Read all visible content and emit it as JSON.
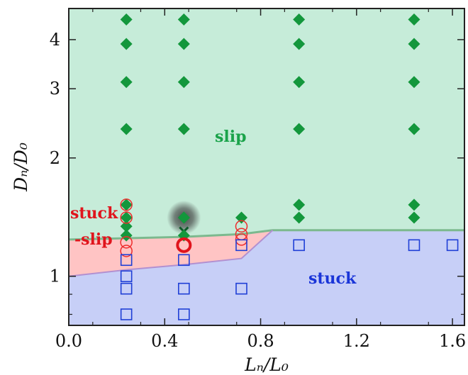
{
  "chart_data": {
    "type": "scatter",
    "xlabel": "Lₙ/L₀",
    "ylabel": "Dₙ/D₀",
    "xlim": [
      0.0,
      1.65
    ],
    "ylim": [
      0.75,
      4.8
    ],
    "y_scale": "log",
    "x_ticks": [
      0.0,
      0.4,
      0.8,
      1.2,
      1.6
    ],
    "x_tick_labels": [
      "0.0",
      "0.4",
      "0.8",
      "1.2",
      "1.6"
    ],
    "y_ticks": [
      1,
      2,
      3,
      4
    ],
    "y_tick_labels": [
      "1",
      "2",
      "3",
      "4"
    ],
    "grid": false,
    "regions": [
      {
        "name": "slip",
        "label": "slip",
        "color": "#c6ecd9",
        "edge_color": "#7cb98e",
        "label_color": "#1aa34a",
        "boundary": [
          [
            0.0,
            1.24
          ],
          [
            0.25,
            1.25
          ],
          [
            0.48,
            1.26
          ],
          [
            0.72,
            1.28
          ],
          [
            0.85,
            1.31
          ],
          [
            1.65,
            1.31
          ]
        ]
      },
      {
        "name": "stuck-slip",
        "label_line1": "stuck",
        "label_line2": "-slip",
        "color": "#ffc4c4",
        "edge_color": "#b290d0",
        "label_color": "#e0141c",
        "lower_boundary": [
          [
            0.0,
            1.0
          ],
          [
            0.25,
            1.04
          ],
          [
            0.48,
            1.07
          ],
          [
            0.72,
            1.11
          ],
          [
            0.85,
            1.31
          ]
        ]
      },
      {
        "name": "stuck",
        "label": "stuck",
        "color": "#c7cff7",
        "label_color": "#1a35d8"
      }
    ],
    "series": [
      {
        "name": "slip",
        "marker": "diamond",
        "color": "#13973c",
        "points": [
          [
            0.24,
            4.5
          ],
          [
            0.24,
            3.9
          ],
          [
            0.24,
            3.12
          ],
          [
            0.24,
            2.37
          ],
          [
            0.24,
            1.52
          ],
          [
            0.24,
            1.41
          ],
          [
            0.24,
            1.34
          ],
          [
            0.24,
            1.27
          ],
          [
            0.48,
            4.5
          ],
          [
            0.48,
            3.9
          ],
          [
            0.48,
            3.12
          ],
          [
            0.48,
            2.37
          ],
          [
            0.48,
            1.41
          ],
          [
            0.72,
            1.41
          ],
          [
            0.96,
            4.5
          ],
          [
            0.96,
            3.9
          ],
          [
            0.96,
            3.12
          ],
          [
            0.96,
            2.37
          ],
          [
            0.96,
            1.52
          ],
          [
            0.96,
            1.41
          ],
          [
            1.44,
            4.5
          ],
          [
            1.44,
            3.9
          ],
          [
            1.44,
            3.12
          ],
          [
            1.44,
            2.37
          ],
          [
            1.44,
            1.52
          ],
          [
            1.44,
            1.41
          ]
        ]
      },
      {
        "name": "stuck-slip",
        "marker": "open-circle",
        "color": "#ee2b2b",
        "points": [
          [
            0.24,
            1.52
          ],
          [
            0.24,
            1.41
          ],
          [
            0.24,
            1.22
          ],
          [
            0.24,
            1.16
          ],
          [
            0.72,
            1.34
          ],
          [
            0.72,
            1.28
          ],
          [
            0.72,
            1.24
          ]
        ]
      },
      {
        "name": "stuck",
        "marker": "open-square",
        "color": "#1f3fd6",
        "points": [
          [
            0.24,
            1.1
          ],
          [
            0.24,
            1.0
          ],
          [
            0.24,
            0.93
          ],
          [
            0.24,
            0.8
          ],
          [
            0.48,
            1.1
          ],
          [
            0.48,
            0.93
          ],
          [
            0.48,
            0.8
          ],
          [
            0.72,
            1.2
          ],
          [
            0.72,
            0.93
          ],
          [
            0.96,
            1.2
          ],
          [
            1.44,
            1.2
          ],
          [
            1.6,
            1.2
          ]
        ]
      }
    ],
    "highlighted_point": {
      "x": 0.48,
      "y": 1.2,
      "marker": "bold-open-circle",
      "color": "#e0141c",
      "glow_color": "#3a3a3a",
      "stacked_markers": [
        {
          "y": 1.41,
          "marker": "diamond",
          "color": "#13973c"
        },
        {
          "y": 1.3,
          "marker": "x-cross",
          "color": "#0f5a2a"
        },
        {
          "y": 1.27,
          "marker": "diamond",
          "color": "#13973c"
        }
      ]
    }
  }
}
